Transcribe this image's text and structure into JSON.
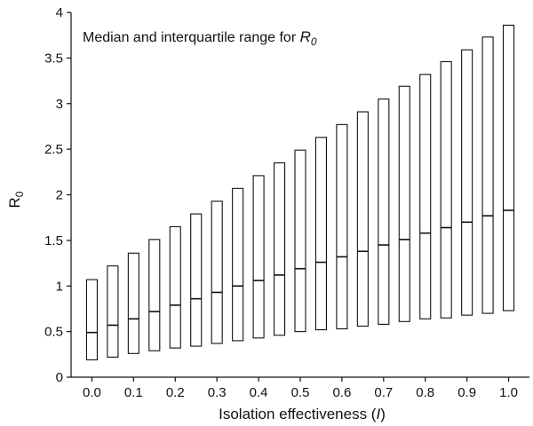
{
  "chart_data": {
    "type": "box",
    "annotation": {
      "text": "Median and interquartile range for ",
      "symbol": "R",
      "subscript": "0"
    },
    "xlabel": {
      "text": "Isolation effectiveness (",
      "symbol": "I",
      "suffix": ")"
    },
    "ylabel": {
      "symbol": "R",
      "subscript": "0"
    },
    "xlim": [
      -0.05,
      1.05
    ],
    "ylim": [
      0,
      4
    ],
    "xticks": [
      0.0,
      0.1,
      0.2,
      0.3,
      0.4,
      0.5,
      0.6,
      0.7,
      0.8,
      0.9,
      1.0
    ],
    "xtick_labels": [
      "0.0",
      "0.1",
      "0.2",
      "0.3",
      "0.4",
      "0.5",
      "0.6",
      "0.7",
      "0.8",
      "0.9",
      "1.0"
    ],
    "yticks": [
      0,
      0.5,
      1,
      1.5,
      2,
      2.5,
      3,
      3.5,
      4
    ],
    "ytick_labels": [
      "0",
      "0.5",
      "1",
      "1.5",
      "2",
      "2.5",
      "3",
      "3.5",
      "4"
    ],
    "grid": false,
    "boxes": [
      {
        "x": 0.0,
        "q1": 0.19,
        "median": 0.49,
        "q3": 1.07
      },
      {
        "x": 0.05,
        "q1": 0.22,
        "median": 0.57,
        "q3": 1.22
      },
      {
        "x": 0.1,
        "q1": 0.26,
        "median": 0.64,
        "q3": 1.36
      },
      {
        "x": 0.15,
        "q1": 0.29,
        "median": 0.72,
        "q3": 1.51
      },
      {
        "x": 0.2,
        "q1": 0.32,
        "median": 0.79,
        "q3": 1.65
      },
      {
        "x": 0.25,
        "q1": 0.34,
        "median": 0.86,
        "q3": 1.79
      },
      {
        "x": 0.3,
        "q1": 0.37,
        "median": 0.93,
        "q3": 1.93
      },
      {
        "x": 0.35,
        "q1": 0.4,
        "median": 1.0,
        "q3": 2.07
      },
      {
        "x": 0.4,
        "q1": 0.43,
        "median": 1.06,
        "q3": 2.21
      },
      {
        "x": 0.45,
        "q1": 0.46,
        "median": 1.12,
        "q3": 2.35
      },
      {
        "x": 0.5,
        "q1": 0.5,
        "median": 1.19,
        "q3": 2.49
      },
      {
        "x": 0.55,
        "q1": 0.52,
        "median": 1.26,
        "q3": 2.63
      },
      {
        "x": 0.6,
        "q1": 0.53,
        "median": 1.32,
        "q3": 2.77
      },
      {
        "x": 0.65,
        "q1": 0.56,
        "median": 1.38,
        "q3": 2.91
      },
      {
        "x": 0.7,
        "q1": 0.58,
        "median": 1.45,
        "q3": 3.05
      },
      {
        "x": 0.75,
        "q1": 0.61,
        "median": 1.51,
        "q3": 3.19
      },
      {
        "x": 0.8,
        "q1": 0.64,
        "median": 1.58,
        "q3": 3.32
      },
      {
        "x": 0.85,
        "q1": 0.65,
        "median": 1.64,
        "q3": 3.46
      },
      {
        "x": 0.9,
        "q1": 0.68,
        "median": 1.7,
        "q3": 3.59
      },
      {
        "x": 0.95,
        "q1": 0.7,
        "median": 1.77,
        "q3": 3.73
      },
      {
        "x": 1.0,
        "q1": 0.73,
        "median": 1.83,
        "q3": 3.86
      }
    ]
  }
}
